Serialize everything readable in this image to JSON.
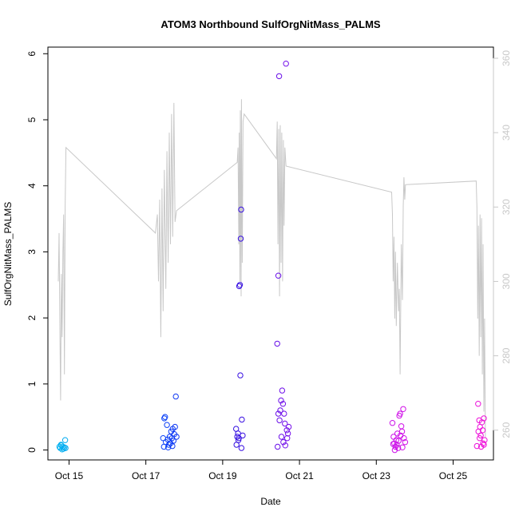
{
  "chart_data": {
    "type": "scatter",
    "title": "ATOM3 Northbound SulfOrgNitMass_PALMS",
    "xlabel": "Date",
    "ylabel": "SulfOrgNitMass_PALMS",
    "x_unit": "day of October 2017",
    "xlim": [
      14.45,
      26.05
    ],
    "ylim": [
      -0.15,
      6.1
    ],
    "y2lim": [
      252,
      363
    ],
    "x_ticks": [
      15,
      17,
      19,
      21,
      23,
      25
    ],
    "x_tick_labels": [
      "Oct 15",
      "Oct 17",
      "Oct 19",
      "Oct 21",
      "Oct 23",
      "Oct 25"
    ],
    "y_ticks": [
      0,
      1,
      2,
      3,
      4,
      5,
      6
    ],
    "y_tick_labels": [
      "0",
      "1",
      "2",
      "3",
      "4",
      "5",
      "6"
    ],
    "y2_ticks": [
      260,
      280,
      300,
      320,
      340,
      360
    ],
    "y2_tick_labels": [
      "260",
      "280",
      "300",
      "320",
      "340",
      "360"
    ],
    "grid": false,
    "legend": "none",
    "colors": {
      "axis": "#000000",
      "secondary_axis": "#c8c8c8",
      "line": "#c8c8c8",
      "point_gradient": [
        "#00b4f0",
        "#0050ff",
        "#2a10e0",
        "#9a10f0",
        "#d010e8",
        "#f010d8"
      ]
    },
    "series": [
      {
        "type": "scatter",
        "axis": "left",
        "points": [
          [
            14.75,
            0.05
          ],
          [
            14.77,
            0.03
          ],
          [
            14.8,
            0.07
          ],
          [
            14.82,
            0.01
          ],
          [
            14.84,
            0.05
          ],
          [
            14.86,
            0.02
          ],
          [
            14.88,
            0.04
          ],
          [
            14.9,
            0.15
          ],
          [
            14.91,
            0.03
          ],
          [
            14.79,
            0.08
          ],
          [
            17.45,
            0.18
          ],
          [
            17.48,
            0.48
          ],
          [
            17.5,
            0.5
          ],
          [
            17.52,
            0.12
          ],
          [
            17.55,
            0.38
          ],
          [
            17.57,
            0.16
          ],
          [
            17.6,
            0.08
          ],
          [
            17.62,
            0.2
          ],
          [
            17.64,
            0.1
          ],
          [
            17.66,
            0.28
          ],
          [
            17.68,
            0.18
          ],
          [
            17.7,
            0.32
          ],
          [
            17.72,
            0.14
          ],
          [
            17.74,
            0.24
          ],
          [
            17.76,
            0.35
          ],
          [
            17.78,
            0.81
          ],
          [
            17.8,
            0.2
          ],
          [
            17.47,
            0.05
          ],
          [
            17.58,
            0.04
          ],
          [
            17.69,
            0.06
          ],
          [
            19.35,
            0.32
          ],
          [
            19.38,
            0.2
          ],
          [
            19.4,
            0.25
          ],
          [
            19.42,
            0.18
          ],
          [
            19.43,
            2.48
          ],
          [
            19.45,
            2.5
          ],
          [
            19.47,
            3.2
          ],
          [
            19.48,
            3.64
          ],
          [
            19.46,
            1.13
          ],
          [
            19.5,
            0.46
          ],
          [
            19.52,
            0.22
          ],
          [
            19.36,
            0.08
          ],
          [
            19.41,
            0.15
          ],
          [
            19.49,
            0.03
          ],
          [
            20.42,
            1.61
          ],
          [
            20.45,
            2.64
          ],
          [
            20.47,
            5.66
          ],
          [
            20.5,
            0.6
          ],
          [
            20.52,
            0.75
          ],
          [
            20.55,
            0.9
          ],
          [
            20.57,
            0.7
          ],
          [
            20.6,
            0.55
          ],
          [
            20.62,
            0.4
          ],
          [
            20.65,
            5.85
          ],
          [
            20.67,
            0.3
          ],
          [
            20.7,
            0.25
          ],
          [
            20.45,
            0.55
          ],
          [
            20.48,
            0.45
          ],
          [
            20.53,
            0.2
          ],
          [
            20.58,
            0.12
          ],
          [
            20.63,
            0.07
          ],
          [
            20.68,
            0.18
          ],
          [
            20.43,
            0.05
          ],
          [
            20.72,
            0.35
          ],
          [
            23.42,
            0.41
          ],
          [
            23.45,
            0.2
          ],
          [
            23.47,
            0.1
          ],
          [
            23.5,
            0.05
          ],
          [
            23.52,
            0.15
          ],
          [
            23.55,
            0.25
          ],
          [
            23.57,
            0.03
          ],
          [
            23.6,
            0.52
          ],
          [
            23.62,
            0.55
          ],
          [
            23.65,
            0.36
          ],
          [
            23.67,
            0.28
          ],
          [
            23.7,
            0.62
          ],
          [
            23.72,
            0.18
          ],
          [
            23.75,
            0.12
          ],
          [
            23.48,
            0.0
          ],
          [
            23.53,
            0.08
          ],
          [
            23.58,
            0.14
          ],
          [
            23.63,
            0.22
          ],
          [
            23.68,
            0.04
          ],
          [
            23.44,
            0.09
          ],
          [
            25.62,
            0.06
          ],
          [
            25.65,
            0.7
          ],
          [
            25.68,
            0.45
          ],
          [
            25.7,
            0.35
          ],
          [
            25.72,
            0.22
          ],
          [
            25.75,
            0.42
          ],
          [
            25.77,
            0.3
          ],
          [
            25.8,
            0.48
          ],
          [
            25.82,
            0.15
          ],
          [
            25.78,
            0.1
          ],
          [
            25.66,
            0.28
          ],
          [
            25.73,
            0.05
          ],
          [
            25.8,
            0.08
          ],
          [
            25.69,
            0.18
          ]
        ]
      },
      {
        "type": "line",
        "axis": "right",
        "points": [
          [
            14.72,
            300
          ],
          [
            14.74,
            313
          ],
          [
            14.76,
            290
          ],
          [
            14.78,
            268
          ],
          [
            14.8,
            302
          ],
          [
            14.82,
            285
          ],
          [
            14.84,
            308
          ],
          [
            14.86,
            318
          ],
          [
            14.88,
            275
          ],
          [
            14.9,
            320
          ],
          [
            14.92,
            336
          ],
          [
            17.25,
            313
          ],
          [
            17.3,
            318
          ],
          [
            17.33,
            300
          ],
          [
            17.36,
            322
          ],
          [
            17.39,
            285
          ],
          [
            17.42,
            325
          ],
          [
            17.45,
            292
          ],
          [
            17.48,
            330
          ],
          [
            17.52,
            298
          ],
          [
            17.55,
            335
          ],
          [
            17.58,
            305
          ],
          [
            17.61,
            340
          ],
          [
            17.64,
            310
          ],
          [
            17.67,
            345
          ],
          [
            17.7,
            312
          ],
          [
            17.73,
            348
          ],
          [
            17.76,
            316
          ],
          [
            17.8,
            319
          ],
          [
            19.38,
            332
          ],
          [
            19.4,
            336
          ],
          [
            19.42,
            310
          ],
          [
            19.43,
            340
          ],
          [
            19.45,
            300
          ],
          [
            19.46,
            346
          ],
          [
            19.48,
            296
          ],
          [
            19.49,
            349
          ],
          [
            19.51,
            305
          ],
          [
            19.53,
            343
          ],
          [
            19.56,
            345
          ],
          [
            20.4,
            333
          ],
          [
            20.42,
            343
          ],
          [
            20.44,
            310
          ],
          [
            20.46,
            341
          ],
          [
            20.48,
            296
          ],
          [
            20.5,
            342
          ],
          [
            20.52,
            305
          ],
          [
            20.54,
            340
          ],
          [
            20.56,
            300
          ],
          [
            20.58,
            338
          ],
          [
            20.6,
            315
          ],
          [
            20.62,
            336
          ],
          [
            20.65,
            331
          ],
          [
            23.4,
            324
          ],
          [
            23.42,
            318
          ],
          [
            23.44,
            300
          ],
          [
            23.46,
            312
          ],
          [
            23.48,
            290
          ],
          [
            23.5,
            308
          ],
          [
            23.52,
            288
          ],
          [
            23.55,
            305
          ],
          [
            23.58,
            292
          ],
          [
            23.6,
            298
          ],
          [
            23.62,
            275
          ],
          [
            23.65,
            310
          ],
          [
            23.68,
            295
          ],
          [
            23.7,
            320
          ],
          [
            23.72,
            328
          ],
          [
            23.74,
            322
          ],
          [
            23.76,
            326
          ],
          [
            25.6,
            327
          ],
          [
            25.62,
            320
          ],
          [
            25.64,
            290
          ],
          [
            25.66,
            315
          ],
          [
            25.68,
            280
          ],
          [
            25.7,
            318
          ],
          [
            25.72,
            285
          ],
          [
            25.74,
            317
          ],
          [
            25.76,
            275
          ],
          [
            25.78,
            310
          ],
          [
            25.8,
            265
          ],
          [
            25.82,
            290
          ],
          [
            25.84,
            258
          ]
        ]
      }
    ]
  }
}
